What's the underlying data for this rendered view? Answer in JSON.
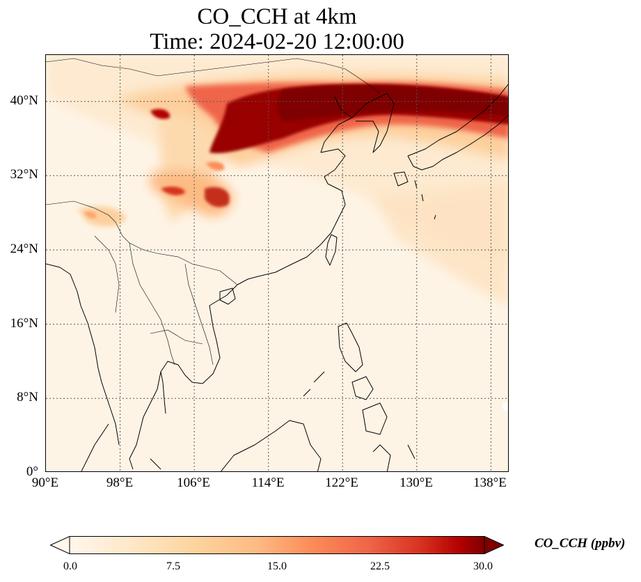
{
  "figure": {
    "title_line1": "CO_CCH at 4km",
    "title_line2": "Time: 2024-02-20 12:00:00"
  },
  "axes": {
    "lat_ticks": [
      "0°",
      "8°N",
      "16°N",
      "24°N",
      "32°N",
      "40°N"
    ],
    "lon_ticks": [
      "90°E",
      "98°E",
      "106°E",
      "114°E",
      "122°E",
      "130°E",
      "138°E"
    ],
    "lon_range": [
      90,
      140
    ],
    "lat_range": [
      0,
      45
    ],
    "gridlines": true
  },
  "colorbar": {
    "label": "CO_CCH (ppbv)",
    "tick_labels": [
      "0.0",
      "7.5",
      "15.0",
      "22.5",
      "30.0"
    ],
    "range": [
      0,
      30
    ],
    "colormap": "OrRd",
    "extend": "both",
    "colors": [
      "#fff7ec",
      "#fdd49e",
      "#fc8d59",
      "#d7301f",
      "#7f0000"
    ]
  },
  "plume_regions": [
    {
      "region": "North China / Korea / Sea of Japan band",
      "level": "high (>=30 ppbv)"
    },
    {
      "region": "Sichuan basin",
      "level": "moderate (~10-18 ppbv)"
    },
    {
      "region": "Northeast India / Myanmar border",
      "level": "low (~5-10 ppbv)"
    }
  ]
}
